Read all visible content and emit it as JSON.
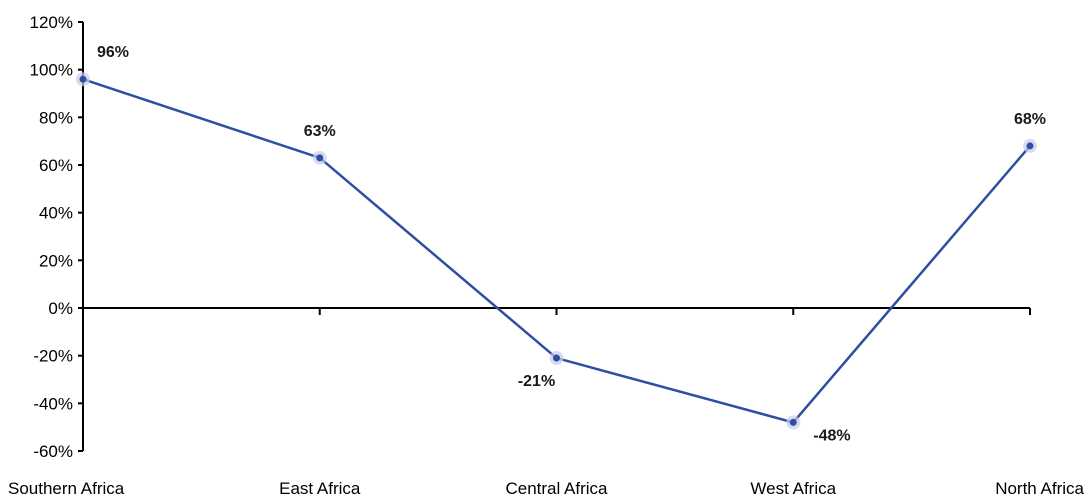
{
  "chart_data": {
    "type": "line",
    "title": "",
    "xlabel": "",
    "ylabel": "",
    "categories": [
      "Southern Africa",
      "East Africa",
      "Central Africa",
      "West Africa",
      "North Africa"
    ],
    "series": [
      {
        "values": [
          96,
          63,
          -21,
          -48,
          68
        ],
        "data_labels": [
          "96%",
          "63%",
          "-21%",
          "-48%",
          "68%"
        ],
        "color": "#2f4ea1"
      }
    ],
    "ylim": [
      -60,
      120
    ],
    "yticks": [
      -60,
      -40,
      -20,
      0,
      20,
      40,
      60,
      80,
      100,
      120
    ],
    "ytick_labels": [
      "-60%",
      "-40%",
      "-20%",
      "0%",
      "20%",
      "40%",
      "60%",
      "80%",
      "100%",
      "120%"
    ],
    "grid": false,
    "legend": "none"
  }
}
